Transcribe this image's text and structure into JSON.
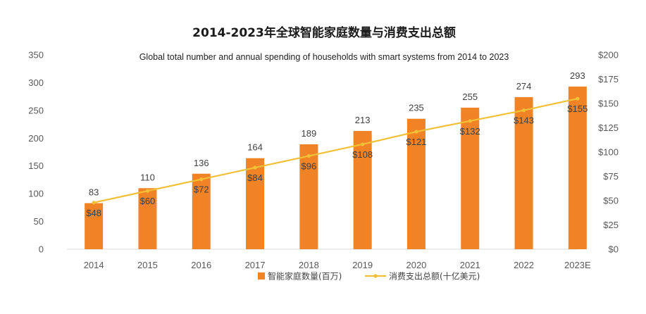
{
  "chart_data": {
    "type": "bar",
    "title": "2014-2023年全球智能家庭数量与消费支出总额",
    "subtitle": "Global total number and  annual spending of households with smart systems from 2014 to 2023",
    "categories": [
      "2014",
      "2015",
      "2016",
      "2017",
      "2018",
      "2019",
      "2020",
      "2021",
      "2022",
      "2023E"
    ],
    "series": [
      {
        "name": "智能家庭数量(百万)",
        "type": "bar",
        "axis": "left",
        "values": [
          83,
          110,
          136,
          164,
          189,
          213,
          235,
          255,
          274,
          293
        ],
        "labels": [
          "83",
          "110",
          "136",
          "164",
          "189",
          "213",
          "235",
          "255",
          "274",
          "293"
        ],
        "color": "#F08326"
      },
      {
        "name": "消费支出总额(十亿美元)",
        "type": "line",
        "axis": "right",
        "values": [
          48,
          60,
          72,
          84,
          96,
          108,
          121,
          132,
          143,
          155
        ],
        "labels": [
          "$48",
          "$60",
          "$72",
          "$84",
          "$96",
          "$108",
          "$121",
          "$132",
          "$143",
          "$155"
        ],
        "color": "#F2C037"
      }
    ],
    "y_left": {
      "min": 0,
      "max": 350,
      "ticks": [
        "0",
        "50",
        "100",
        "150",
        "200",
        "250",
        "300",
        "350"
      ]
    },
    "y_right": {
      "min": 0,
      "max": 200,
      "ticks": [
        "$0",
        "$25",
        "$50",
        "$75",
        "$100",
        "$125",
        "$150",
        "$175",
        "$200"
      ]
    },
    "grid": false,
    "legend_position": "bottom"
  }
}
